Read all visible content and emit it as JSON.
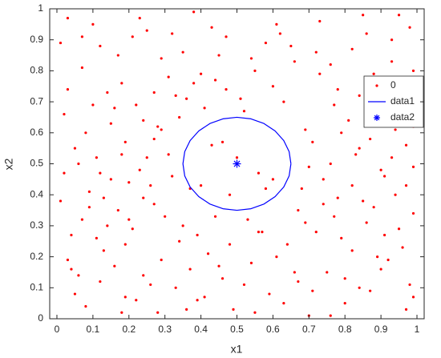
{
  "chart_data": {
    "type": "scatter",
    "xlabel": "x1",
    "ylabel": "x2",
    "xlim": [
      -0.02,
      1.02
    ],
    "ylim": [
      0,
      1
    ],
    "xticks": [
      0,
      0.1,
      0.2,
      0.3,
      0.4,
      0.5,
      0.6,
      0.7,
      0.8,
      0.9,
      1
    ],
    "yticks": [
      0,
      0.1,
      0.2,
      0.3,
      0.4,
      0.5,
      0.6,
      0.7,
      0.8,
      0.9,
      1
    ],
    "grid": false,
    "legend": "northeast",
    "series": [
      {
        "name": "0",
        "color": "#ff0000",
        "mode": "markers",
        "marker": "dot",
        "x": [
          0.03,
          0.12,
          0.25,
          0.38,
          0.47,
          0.61,
          0.72,
          0.85,
          0.93,
          0.98,
          0.07,
          0.18,
          0.29,
          0.33,
          0.55,
          0.66,
          0.78,
          0.88,
          0.95,
          0.44,
          0.02,
          0.15,
          0.22,
          0.41,
          0.52,
          0.69,
          0.81,
          0.91,
          0.99,
          0.36,
          0.05,
          0.11,
          0.27,
          0.32,
          0.71,
          0.76,
          0.83,
          0.9,
          0.97,
          0.2,
          0.01,
          0.09,
          0.17,
          0.24,
          0.3,
          0.68,
          0.74,
          0.86,
          0.94,
          0.99,
          0.04,
          0.13,
          0.21,
          0.34,
          0.42,
          0.57,
          0.64,
          0.79,
          0.89,
          0.96,
          0.06,
          0.16,
          0.26,
          0.37,
          0.46,
          0.54,
          0.67,
          0.75,
          0.84,
          0.92,
          0.08,
          0.19,
          0.28,
          0.39,
          0.49,
          0.59,
          0.7,
          0.8,
          0.87,
          0.97,
          0.1,
          0.23,
          0.35,
          0.45,
          0.58,
          0.62,
          0.73,
          0.82,
          0.93,
          0.01,
          0.14,
          0.31,
          0.4,
          0.51,
          0.6,
          0.77,
          0.84,
          0.96,
          0.03,
          0.24,
          0.08,
          0.19,
          0.28,
          0.43,
          0.5,
          0.56,
          0.79,
          0.87,
          0.93,
          0.12,
          0.02,
          0.23,
          0.31,
          0.4,
          0.48,
          0.6,
          0.7,
          0.82,
          0.91,
          0.99,
          0.07,
          0.14,
          0.26,
          0.35,
          0.44,
          0.53,
          0.67,
          0.78,
          0.88,
          0.95,
          0.03,
          0.11,
          0.19,
          0.29,
          0.39,
          0.48,
          0.61,
          0.72,
          0.82,
          0.91,
          0.05,
          0.12,
          0.22,
          0.33,
          0.41,
          0.52,
          0.63,
          0.71,
          0.8,
          0.98,
          0.17,
          0.21,
          0.32,
          0.43,
          0.54,
          0.65,
          0.76,
          0.86,
          0.95,
          0.07,
          0.16,
          0.27,
          0.38,
          0.47,
          0.63,
          0.73,
          0.89,
          0.99,
          0.1,
          0.34,
          0.06,
          0.15,
          0.25,
          0.46,
          0.58,
          0.74,
          0.84,
          0.94,
          0.18,
          0.29,
          0.09,
          0.2,
          0.27,
          0.37,
          0.56,
          0.69,
          0.77,
          0.85,
          0.97,
          0.13,
          0.04,
          0.18,
          0.24,
          0.36,
          0.45,
          0.55,
          0.66,
          0.76,
          0.9,
          0.99
        ],
        "y": [
          0.97,
          0.88,
          0.93,
          0.99,
          0.91,
          0.95,
          0.86,
          0.98,
          0.9,
          0.94,
          0.81,
          0.76,
          0.84,
          0.72,
          0.8,
          0.83,
          0.74,
          0.79,
          0.71,
          0.77,
          0.66,
          0.63,
          0.69,
          0.68,
          0.67,
          0.61,
          0.64,
          0.69,
          0.62,
          0.71,
          0.55,
          0.52,
          0.58,
          0.46,
          0.57,
          0.5,
          0.53,
          0.48,
          0.56,
          0.44,
          0.38,
          0.41,
          0.35,
          0.39,
          0.33,
          0.42,
          0.37,
          0.31,
          0.4,
          0.34,
          0.27,
          0.22,
          0.29,
          0.25,
          0.21,
          0.28,
          0.24,
          0.26,
          0.2,
          0.23,
          0.14,
          0.17,
          0.11,
          0.16,
          0.13,
          0.18,
          0.12,
          0.15,
          0.1,
          0.19,
          0.04,
          0.07,
          0.02,
          0.06,
          0.03,
          0.08,
          0.01,
          0.05,
          0.09,
          0.03,
          0.95,
          0.97,
          0.86,
          0.85,
          0.89,
          0.92,
          0.96,
          0.87,
          0.83,
          0.89,
          0.73,
          0.78,
          0.79,
          0.71,
          0.75,
          0.69,
          0.72,
          0.77,
          0.74,
          0.64,
          0.6,
          0.57,
          0.62,
          0.56,
          0.52,
          0.47,
          0.6,
          0.58,
          0.52,
          0.47,
          0.47,
          0.48,
          0.53,
          0.43,
          0.4,
          0.45,
          0.49,
          0.43,
          0.46,
          0.49,
          0.32,
          0.3,
          0.43,
          0.3,
          0.33,
          0.32,
          0.35,
          0.39,
          0.36,
          0.29,
          0.19,
          0.26,
          0.24,
          0.19,
          0.27,
          0.24,
          0.2,
          0.28,
          0.22,
          0.27,
          0.08,
          0.12,
          0.06,
          0.1,
          0.07,
          0.11,
          0.05,
          0.09,
          0.13,
          0.11,
          0.85,
          0.91,
          0.92,
          0.94,
          0.84,
          0.88,
          0.82,
          0.92,
          0.98,
          0.91,
          0.68,
          0.73,
          0.76,
          0.74,
          0.7,
          0.79,
          0.73,
          0.8,
          0.69,
          0.65,
          0.5,
          0.45,
          0.52,
          0.57,
          0.42,
          0.45,
          0.55,
          0.61,
          0.53,
          0.61,
          0.36,
          0.32,
          0.37,
          0.42,
          0.28,
          0.31,
          0.33,
          0.38,
          0.43,
          0.39,
          0.16,
          0.02,
          0.14,
          0.03,
          0.17,
          0.02,
          0.15,
          0.01,
          0.16,
          0.07
        ]
      },
      {
        "name": "data1",
        "color": "#0000ff",
        "mode": "lines",
        "x": [
          0.65,
          0.645,
          0.63,
          0.606,
          0.575,
          0.539,
          0.5,
          0.461,
          0.425,
          0.394,
          0.37,
          0.355,
          0.35,
          0.355,
          0.37,
          0.394,
          0.425,
          0.461,
          0.5,
          0.539,
          0.575,
          0.606,
          0.63,
          0.645,
          0.65
        ],
        "y": [
          0.5,
          0.539,
          0.575,
          0.606,
          0.63,
          0.645,
          0.65,
          0.645,
          0.63,
          0.606,
          0.575,
          0.539,
          0.5,
          0.461,
          0.425,
          0.394,
          0.37,
          0.355,
          0.35,
          0.355,
          0.37,
          0.394,
          0.425,
          0.461,
          0.5
        ]
      },
      {
        "name": "data2",
        "color": "#0000ff",
        "mode": "markers",
        "marker": "asterisk",
        "x": [
          0.5
        ],
        "y": [
          0.5
        ]
      }
    ]
  }
}
